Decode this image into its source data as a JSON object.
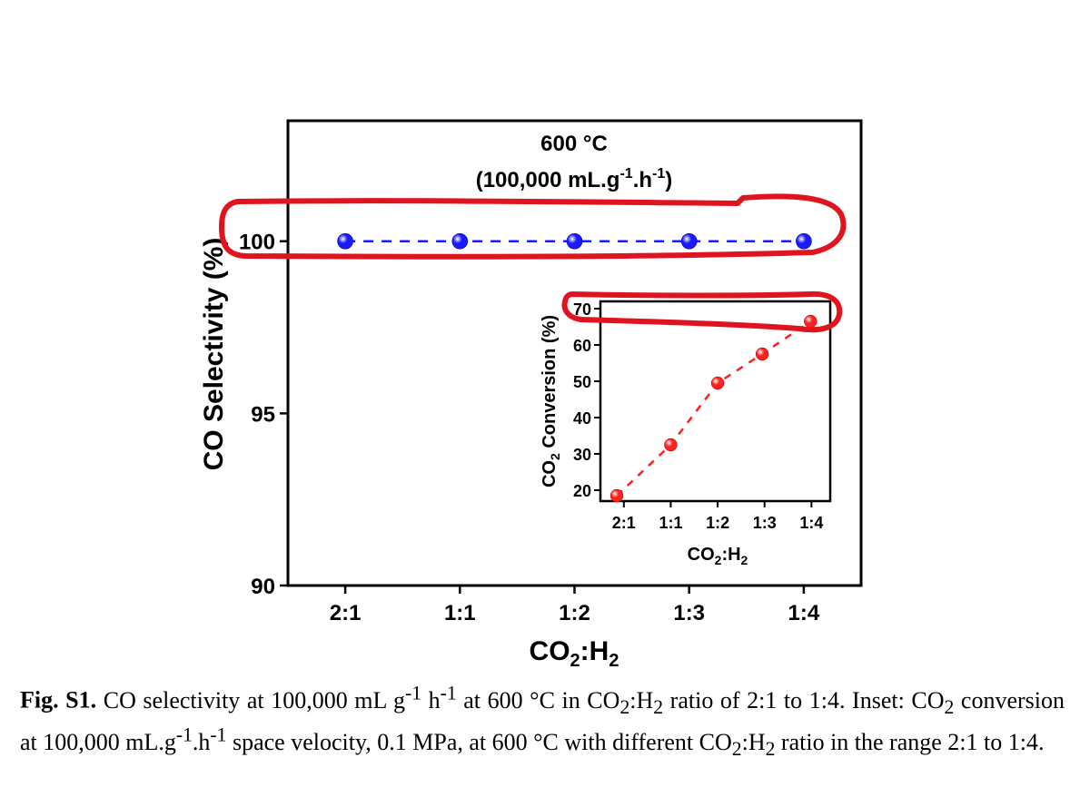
{
  "chart_data": [
    {
      "type": "scatter",
      "title_line1": "600 °C",
      "title_line2_prefix": "(100,000 mL.g",
      "title_line2_sup1": "-1",
      "title_line2_mid": ".h",
      "title_line2_sup2": "-1",
      "title_line2_suffix": ")",
      "ylabel": "CO Selectivity (%)",
      "xlabel_main": "CO",
      "xlabel_sub": "2",
      "xlabel_tail": ":H",
      "xlabel_sub2": "2",
      "categories": [
        "2:1",
        "1:1",
        "1:2",
        "1:3",
        "1:4"
      ],
      "values": [
        100,
        100,
        100,
        100,
        100
      ],
      "ylim": [
        90,
        103.5
      ],
      "yticks": [
        90,
        95,
        100
      ],
      "marker_color": "#1a1aff",
      "line_style": "dashed"
    },
    {
      "type": "scatter",
      "inset": true,
      "ylabel_main": "CO",
      "ylabel_sub": "2",
      "ylabel_tail": " Conversion (%)",
      "xlabel_main": "CO",
      "xlabel_sub": "2",
      "xlabel_tail": ":H",
      "xlabel_sub2": "2",
      "categories": [
        "2:1",
        "1:1",
        "1:2",
        "1:3",
        "1:4"
      ],
      "x": [
        0.85,
        2.0,
        3.0,
        3.95,
        4.98
      ],
      "values": [
        18.5,
        32.5,
        49.5,
        57.5,
        66.5
      ],
      "ylim": [
        17,
        72
      ],
      "yticks": [
        20,
        30,
        40,
        50,
        60,
        70
      ],
      "marker_color": "#ff2020",
      "line_style": "dashed"
    }
  ],
  "annotation_color": "#e0141e",
  "caption": {
    "label": "Fig. S1.",
    "text_html": " CO selectivity at 100,000 mL g<sup>-1</sup> h<sup>-1</sup> at 600 °C in CO<sub>2</sub>:H<sub>2</sub> ratio of 2:1 to 1:4. Inset: CO<sub>2</sub> conversion at 100,000 mL.g<sup>-1</sup>.h<sup>-1</sup> space velocity, 0.1 MPa, at 600 °C with different CO<sub>2</sub>:H<sub>2</sub> ratio in the range 2:1 to 1:4."
  }
}
